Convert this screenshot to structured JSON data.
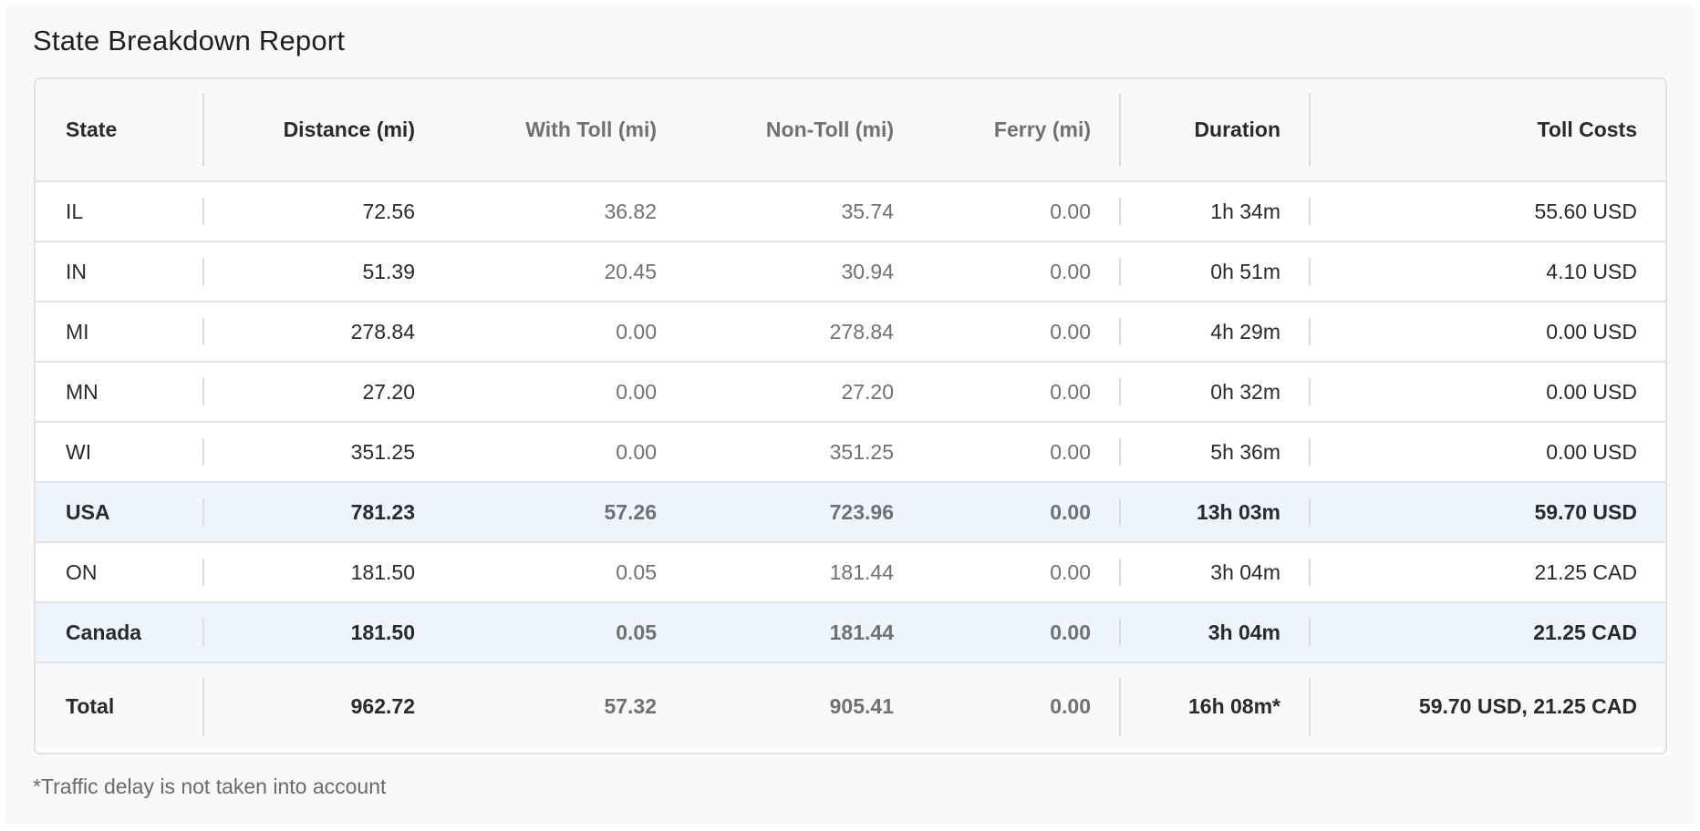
{
  "report": {
    "title": "State Breakdown Report",
    "footnote": "*Traffic delay is not taken into account"
  },
  "table": {
    "headers": {
      "state": "State",
      "distance": "Distance (mi)",
      "with_toll": "With Toll (mi)",
      "non_toll": "Non-Toll (mi)",
      "ferry": "Ferry (mi)",
      "duration": "Duration",
      "toll_costs": "Toll Costs"
    },
    "rows": [
      {
        "state": "IL",
        "distance": "72.56",
        "with_toll": "36.82",
        "non_toll": "35.74",
        "ferry": "0.00",
        "duration": "1h 34m",
        "toll_costs": "55.60 USD"
      },
      {
        "state": "IN",
        "distance": "51.39",
        "with_toll": "20.45",
        "non_toll": "30.94",
        "ferry": "0.00",
        "duration": "0h 51m",
        "toll_costs": "4.10 USD"
      },
      {
        "state": "MI",
        "distance": "278.84",
        "with_toll": "0.00",
        "non_toll": "278.84",
        "ferry": "0.00",
        "duration": "4h 29m",
        "toll_costs": "0.00 USD"
      },
      {
        "state": "MN",
        "distance": "27.20",
        "with_toll": "0.00",
        "non_toll": "27.20",
        "ferry": "0.00",
        "duration": "0h 32m",
        "toll_costs": "0.00 USD"
      },
      {
        "state": "WI",
        "distance": "351.25",
        "with_toll": "0.00",
        "non_toll": "351.25",
        "ferry": "0.00",
        "duration": "5h 36m",
        "toll_costs": "0.00 USD"
      },
      {
        "state": "USA",
        "distance": "781.23",
        "with_toll": "57.26",
        "non_toll": "723.96",
        "ferry": "0.00",
        "duration": "13h 03m",
        "toll_costs": "59.70 USD"
      },
      {
        "state": "ON",
        "distance": "181.50",
        "with_toll": "0.05",
        "non_toll": "181.44",
        "ferry": "0.00",
        "duration": "3h 04m",
        "toll_costs": "21.25 CAD"
      },
      {
        "state": "Canada",
        "distance": "181.50",
        "with_toll": "0.05",
        "non_toll": "181.44",
        "ferry": "0.00",
        "duration": "3h 04m",
        "toll_costs": "21.25 CAD"
      }
    ],
    "total": {
      "state": "Total",
      "distance": "962.72",
      "with_toll": "57.32",
      "non_toll": "905.41",
      "ferry": "0.00",
      "duration": "16h 08m*",
      "toll_costs": "59.70 USD, 21.25 CAD"
    }
  },
  "colors": {
    "subtotal_row_bg": "#eef5fd",
    "muted_text": "#717171",
    "border": "#e2e2e2"
  }
}
